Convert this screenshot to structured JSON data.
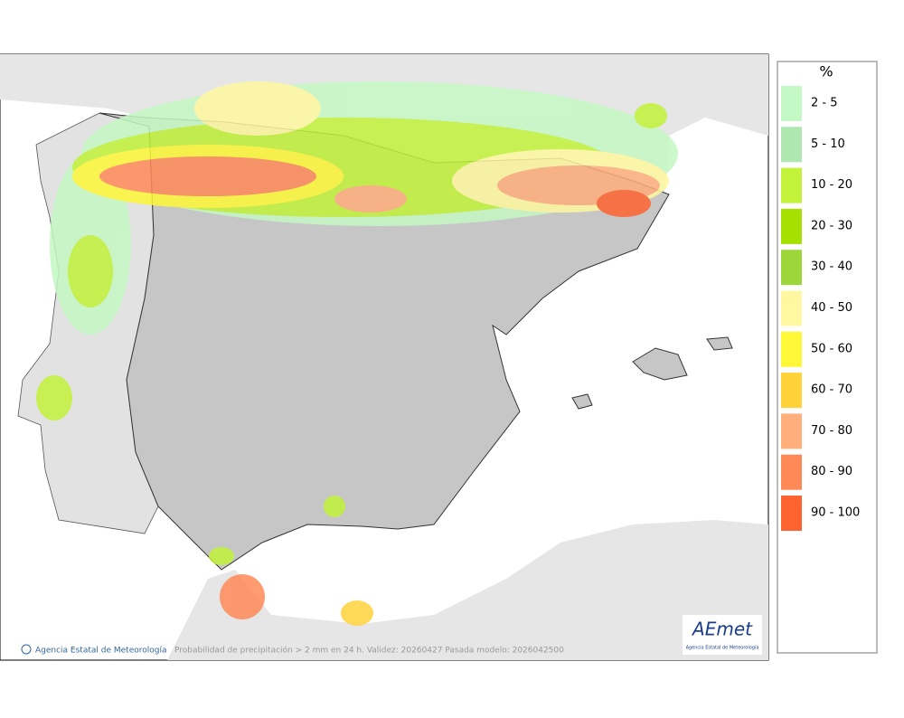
{
  "legend": {
    "title": "%",
    "items": [
      {
        "label": "2 - 5",
        "color": "#c4f8c4"
      },
      {
        "label": "5 - 10",
        "color": "#aee8b0"
      },
      {
        "label": "10 - 20",
        "color": "#c2f23a"
      },
      {
        "label": "20 - 30",
        "color": "#a6e000"
      },
      {
        "label": "30 - 40",
        "color": "#9cd63a"
      },
      {
        "label": "40 - 50",
        "color": "#fff8a0"
      },
      {
        "label": "50 - 60",
        "color": "#fff838"
      },
      {
        "label": "60 - 70",
        "color": "#ffd23a"
      },
      {
        "label": "70 - 80",
        "color": "#ffae7c"
      },
      {
        "label": "80 - 90",
        "color": "#ff8a58"
      },
      {
        "label": "90 - 100",
        "color": "#ff6430"
      }
    ]
  },
  "footer": {
    "agency": "Agencia Estatal de Meteorología",
    "caption": "Probabilidad de precipitación > 2 mm en 24 h. Validez: 20260427 Pasada modelo: 2026042500"
  },
  "logo": {
    "name": "AEmet",
    "subtitle": "Agencia Estatal de Meteorología"
  }
}
